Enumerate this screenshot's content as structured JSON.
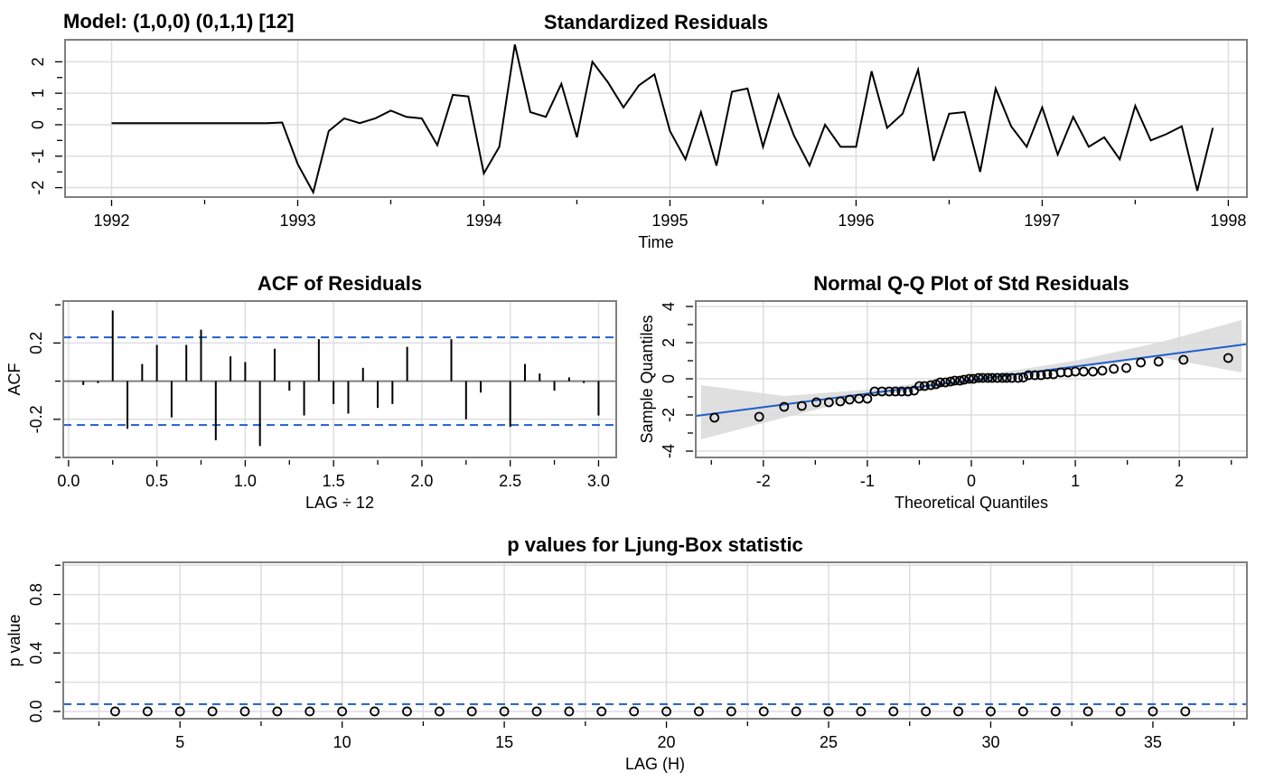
{
  "model_label": "Model: (1,0,0) (0,1,1) [12]",
  "colors": {
    "line": "#000000",
    "reference": "#1f5fc9",
    "band": "#d9d9d9",
    "grid": "#dedede",
    "frame": "#7f7f7f"
  },
  "chart_data": [
    {
      "id": "std-residuals",
      "type": "line",
      "title": "Standardized Residuals",
      "xlabel": "Time",
      "ylabel": "",
      "xlim": [
        1991.75,
        1998.1
      ],
      "ylim": [
        -2.3,
        2.7
      ],
      "xticks": [
        1992,
        1993,
        1994,
        1995,
        1996,
        1997,
        1998
      ],
      "yticks": [
        -2,
        -1,
        0,
        1,
        2
      ],
      "grid": true,
      "x_start": 1992.0,
      "x_step": 0.0833333,
      "values": [
        0.05,
        0.05,
        0.05,
        0.05,
        0.05,
        0.05,
        0.05,
        0.05,
        0.05,
        0.05,
        0.05,
        0.07,
        -1.25,
        -2.15,
        -0.2,
        0.2,
        0.05,
        0.2,
        0.45,
        0.25,
        0.2,
        -0.65,
        0.95,
        0.9,
        -1.55,
        -0.7,
        2.55,
        0.4,
        0.25,
        1.3,
        -0.4,
        2.0,
        1.35,
        0.55,
        1.25,
        1.6,
        -0.2,
        -1.1,
        0.4,
        -1.3,
        1.05,
        1.15,
        -0.7,
        0.95,
        -0.35,
        -1.3,
        0.0,
        -0.7,
        -0.7,
        1.7,
        -0.1,
        0.35,
        1.75,
        -1.15,
        0.35,
        0.4,
        -1.5,
        1.15,
        -0.05,
        -0.7,
        0.55,
        -0.95,
        0.25,
        -0.7,
        -0.4,
        -1.1,
        0.6,
        -0.5,
        -0.3,
        -0.05,
        -2.1,
        -0.1
      ]
    },
    {
      "id": "acf-residuals",
      "type": "bar",
      "title": "ACF of Residuals",
      "xlabel": "LAG ÷ 12",
      "ylabel": "ACF",
      "xlim": [
        -0.03,
        3.1
      ],
      "ylim": [
        -0.4,
        0.42
      ],
      "xticks": [
        0.0,
        0.5,
        1.0,
        1.5,
        2.0,
        2.5,
        3.0
      ],
      "xtick_labels": [
        "0.0",
        "0.5",
        "1.0",
        "1.5",
        "2.0",
        "2.5",
        "3.0"
      ],
      "yticks": [
        -0.2,
        0.2
      ],
      "ytick_labels": [
        "-0.2",
        "0.2"
      ],
      "conf_upper": 0.23,
      "conf_lower": -0.23,
      "grid": true,
      "lag_step": 0.0833333,
      "values": [
        -0.02,
        -0.01,
        0.37,
        -0.25,
        0.09,
        0.19,
        -0.19,
        0.19,
        0.27,
        -0.31,
        0.13,
        0.1,
        -0.34,
        0.17,
        -0.05,
        -0.18,
        0.22,
        -0.12,
        -0.17,
        0.07,
        -0.14,
        -0.12,
        0.18,
        0.0,
        0.0,
        0.22,
        -0.2,
        -0.06,
        0.0,
        -0.24,
        0.09,
        0.04,
        -0.05,
        0.02,
        -0.01,
        -0.18
      ]
    },
    {
      "id": "qq-plot",
      "type": "scatter",
      "title": "Normal Q-Q Plot of Std Residuals",
      "xlabel": "Theoretical Quantiles",
      "ylabel": "Sample Quantiles",
      "xlim": [
        -2.65,
        2.65
      ],
      "ylim": [
        -4.35,
        4.3
      ],
      "xticks": [
        -2,
        -1,
        0,
        1,
        2
      ],
      "yticks": [
        -4,
        -2,
        0,
        2,
        4
      ],
      "grid": true,
      "reference_line": {
        "intercept": -0.07,
        "slope": 0.75
      },
      "band": {
        "lower": [
          [
            -2.6,
            -3.35
          ],
          [
            -1.8,
            -2.15
          ],
          [
            -1.0,
            -1.0
          ],
          [
            0.0,
            -0.22
          ],
          [
            1.0,
            0.55
          ],
          [
            1.8,
            1.2
          ],
          [
            2.6,
            0.35
          ]
        ],
        "upper": [
          [
            -2.6,
            -0.35
          ],
          [
            -1.8,
            -0.95
          ],
          [
            -1.0,
            -0.6
          ],
          [
            0.0,
            0.1
          ],
          [
            1.0,
            1.0
          ],
          [
            1.8,
            2.0
          ],
          [
            2.6,
            3.25
          ]
        ]
      },
      "points": [
        [
          -2.47,
          -2.15
        ],
        [
          -2.04,
          -2.1
        ],
        [
          -1.8,
          -1.55
        ],
        [
          -1.63,
          -1.5
        ],
        [
          -1.49,
          -1.3
        ],
        [
          -1.37,
          -1.3
        ],
        [
          -1.26,
          -1.25
        ],
        [
          -1.17,
          -1.15
        ],
        [
          -1.08,
          -1.1
        ],
        [
          -1.0,
          -1.1
        ],
        [
          -0.93,
          -0.7
        ],
        [
          -0.86,
          -0.7
        ],
        [
          -0.79,
          -0.7
        ],
        [
          -0.73,
          -0.7
        ],
        [
          -0.67,
          -0.7
        ],
        [
          -0.61,
          -0.7
        ],
        [
          -0.55,
          -0.65
        ],
        [
          -0.5,
          -0.4
        ],
        [
          -0.45,
          -0.4
        ],
        [
          -0.39,
          -0.35
        ],
        [
          -0.34,
          -0.3
        ],
        [
          -0.3,
          -0.2
        ],
        [
          -0.25,
          -0.2
        ],
        [
          -0.2,
          -0.15
        ],
        [
          -0.16,
          -0.1
        ],
        [
          -0.11,
          -0.1
        ],
        [
          -0.07,
          -0.05
        ],
        [
          -0.02,
          0.0
        ],
        [
          0.02,
          0.0
        ],
        [
          0.07,
          0.05
        ],
        [
          0.11,
          0.05
        ],
        [
          0.16,
          0.05
        ],
        [
          0.2,
          0.05
        ],
        [
          0.25,
          0.05
        ],
        [
          0.3,
          0.05
        ],
        [
          0.34,
          0.05
        ],
        [
          0.39,
          0.05
        ],
        [
          0.45,
          0.05
        ],
        [
          0.5,
          0.07
        ],
        [
          0.55,
          0.2
        ],
        [
          0.61,
          0.2
        ],
        [
          0.67,
          0.2
        ],
        [
          0.73,
          0.25
        ],
        [
          0.79,
          0.25
        ],
        [
          0.86,
          0.35
        ],
        [
          0.93,
          0.35
        ],
        [
          1.0,
          0.4
        ],
        [
          1.08,
          0.4
        ],
        [
          1.17,
          0.4
        ],
        [
          1.26,
          0.45
        ],
        [
          1.37,
          0.55
        ],
        [
          1.49,
          0.6
        ],
        [
          1.63,
          0.9
        ],
        [
          1.8,
          0.95
        ],
        [
          2.04,
          1.05
        ],
        [
          2.47,
          1.15
        ]
      ]
    },
    {
      "id": "ljung-box",
      "type": "scatter",
      "title": "p values for Ljung-Box statistic",
      "xlabel": "LAG (H)",
      "ylabel": "p value",
      "xlim": [
        1.4,
        37.9
      ],
      "ylim": [
        -0.05,
        1.02
      ],
      "xticks": [
        5,
        10,
        15,
        20,
        25,
        30,
        35
      ],
      "yticks": [
        0.0,
        0.4,
        0.8
      ],
      "ytick_labels": [
        "0.0",
        "0.4",
        "0.8"
      ],
      "reference_line_y": 0.05,
      "grid": true,
      "x": [
        3,
        4,
        5,
        6,
        7,
        8,
        9,
        10,
        11,
        12,
        13,
        14,
        15,
        16,
        17,
        18,
        19,
        20,
        21,
        22,
        23,
        24,
        25,
        26,
        27,
        28,
        29,
        30,
        31,
        32,
        33,
        34,
        35,
        36
      ],
      "values": [
        0,
        0,
        0,
        0,
        0,
        0,
        0,
        0,
        0,
        0,
        0,
        0,
        0,
        0,
        0,
        0,
        0,
        0,
        0,
        0,
        0,
        0,
        0,
        0,
        0,
        0,
        0,
        0,
        0,
        0,
        0,
        0,
        0,
        0
      ]
    }
  ]
}
